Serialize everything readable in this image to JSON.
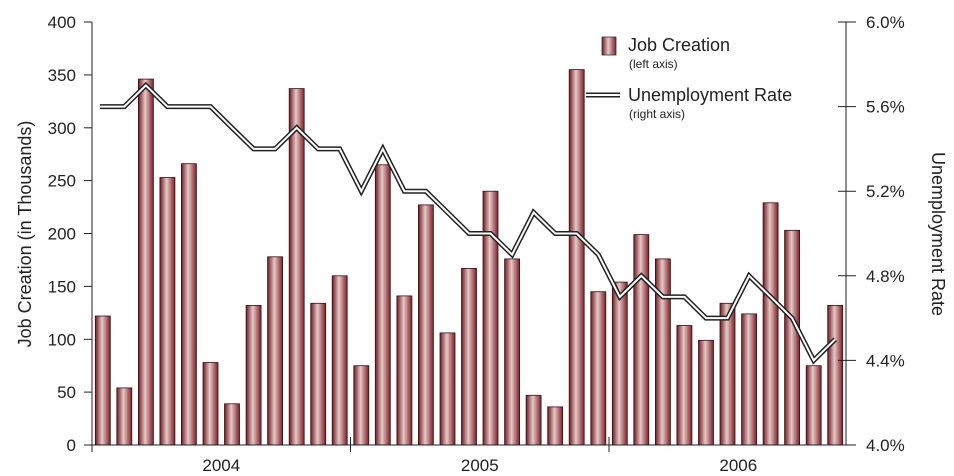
{
  "chart_data": {
    "type": "bar+line",
    "x_labels": [
      "2004",
      "2005",
      "2006"
    ],
    "left_axis": {
      "label": "Job Creation (in Thousands)",
      "ylim": [
        0,
        400
      ],
      "ticks": [
        "0",
        "50",
        "100",
        "150",
        "200",
        "250",
        "300",
        "350",
        "400"
      ],
      "tick_values": [
        0,
        50,
        100,
        150,
        200,
        250,
        300,
        350,
        400
      ]
    },
    "right_axis": {
      "label": "Unemployment Rate",
      "ylim": [
        4.0,
        6.0
      ],
      "ticks": [
        "4.0%",
        "4.4%",
        "4.8%",
        "5.2%",
        "5.6%",
        "6.0%"
      ],
      "tick_values": [
        4.0,
        4.4,
        4.8,
        5.2,
        5.6,
        6.0
      ]
    },
    "series": [
      {
        "name": "Job Creation",
        "note": "(left axis)",
        "type": "bar",
        "color": "#a4343a",
        "values": [
          122,
          54,
          346,
          253,
          266,
          78,
          39,
          132,
          178,
          337,
          134,
          160,
          75,
          265,
          141,
          227,
          106,
          167,
          240,
          176,
          47,
          36,
          355,
          145,
          154,
          199,
          176,
          113,
          99,
          134,
          124,
          229,
          203,
          75,
          132
        ]
      },
      {
        "name": "Unemployment Rate",
        "note": "(right axis)",
        "type": "line",
        "values": [
          5.6,
          5.6,
          5.7,
          5.6,
          5.6,
          5.6,
          5.5,
          5.4,
          5.4,
          5.5,
          5.4,
          5.4,
          5.2,
          5.4,
          5.2,
          5.2,
          5.1,
          5.0,
          5.0,
          4.9,
          5.1,
          5.0,
          5.0,
          4.9,
          4.7,
          4.8,
          4.7,
          4.7,
          4.6,
          4.6,
          4.8,
          4.7,
          4.6,
          4.4,
          4.5
        ]
      }
    ],
    "legend_position": "top-right",
    "grid": false
  }
}
